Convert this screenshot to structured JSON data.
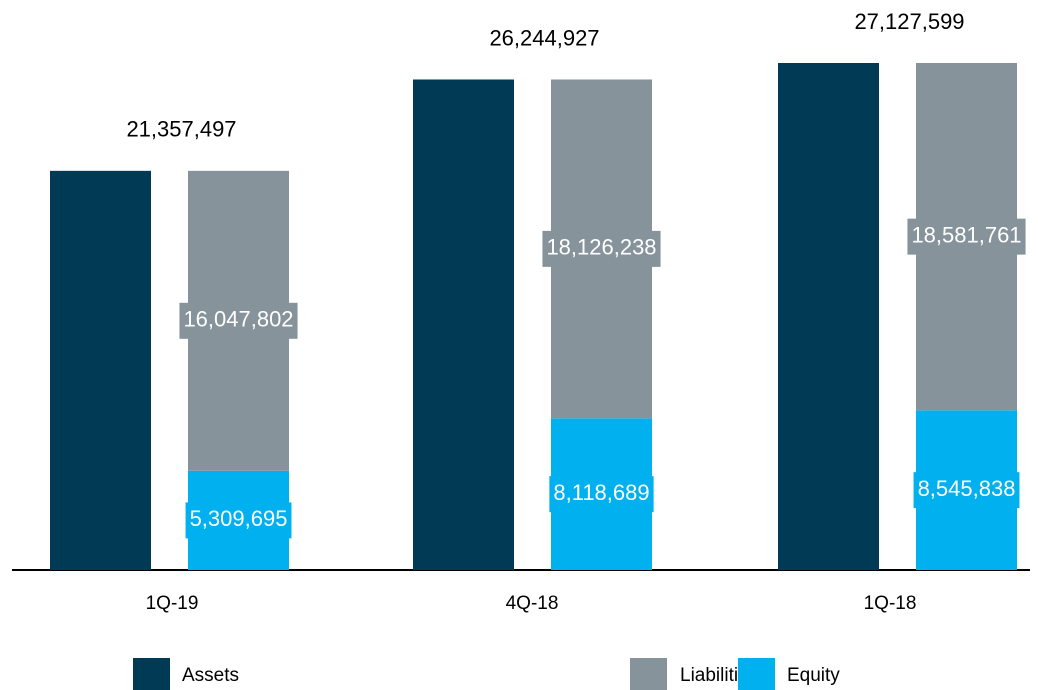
{
  "chart_data": {
    "type": "bar",
    "categories": [
      "1Q-19",
      "4Q-18",
      "1Q-18"
    ],
    "series": [
      {
        "name": "Assets",
        "color": "#003a54",
        "values": [
          21357497,
          26244927,
          27127599
        ],
        "value_labels": [
          "21,357,497",
          "26,244,927",
          "27,127,599"
        ]
      },
      {
        "name": "Liabilities",
        "color": "#87939b",
        "values": [
          16047802,
          18126238,
          18581761
        ],
        "value_labels": [
          "16,047,802",
          "18,126,238",
          "18,581,761"
        ]
      },
      {
        "name": "Equity",
        "color": "#00b0ef",
        "values": [
          5309695,
          8118689,
          8545838
        ],
        "value_labels": [
          "5,309,695",
          "8,118,689",
          "8,545,838"
        ]
      }
    ]
  }
}
